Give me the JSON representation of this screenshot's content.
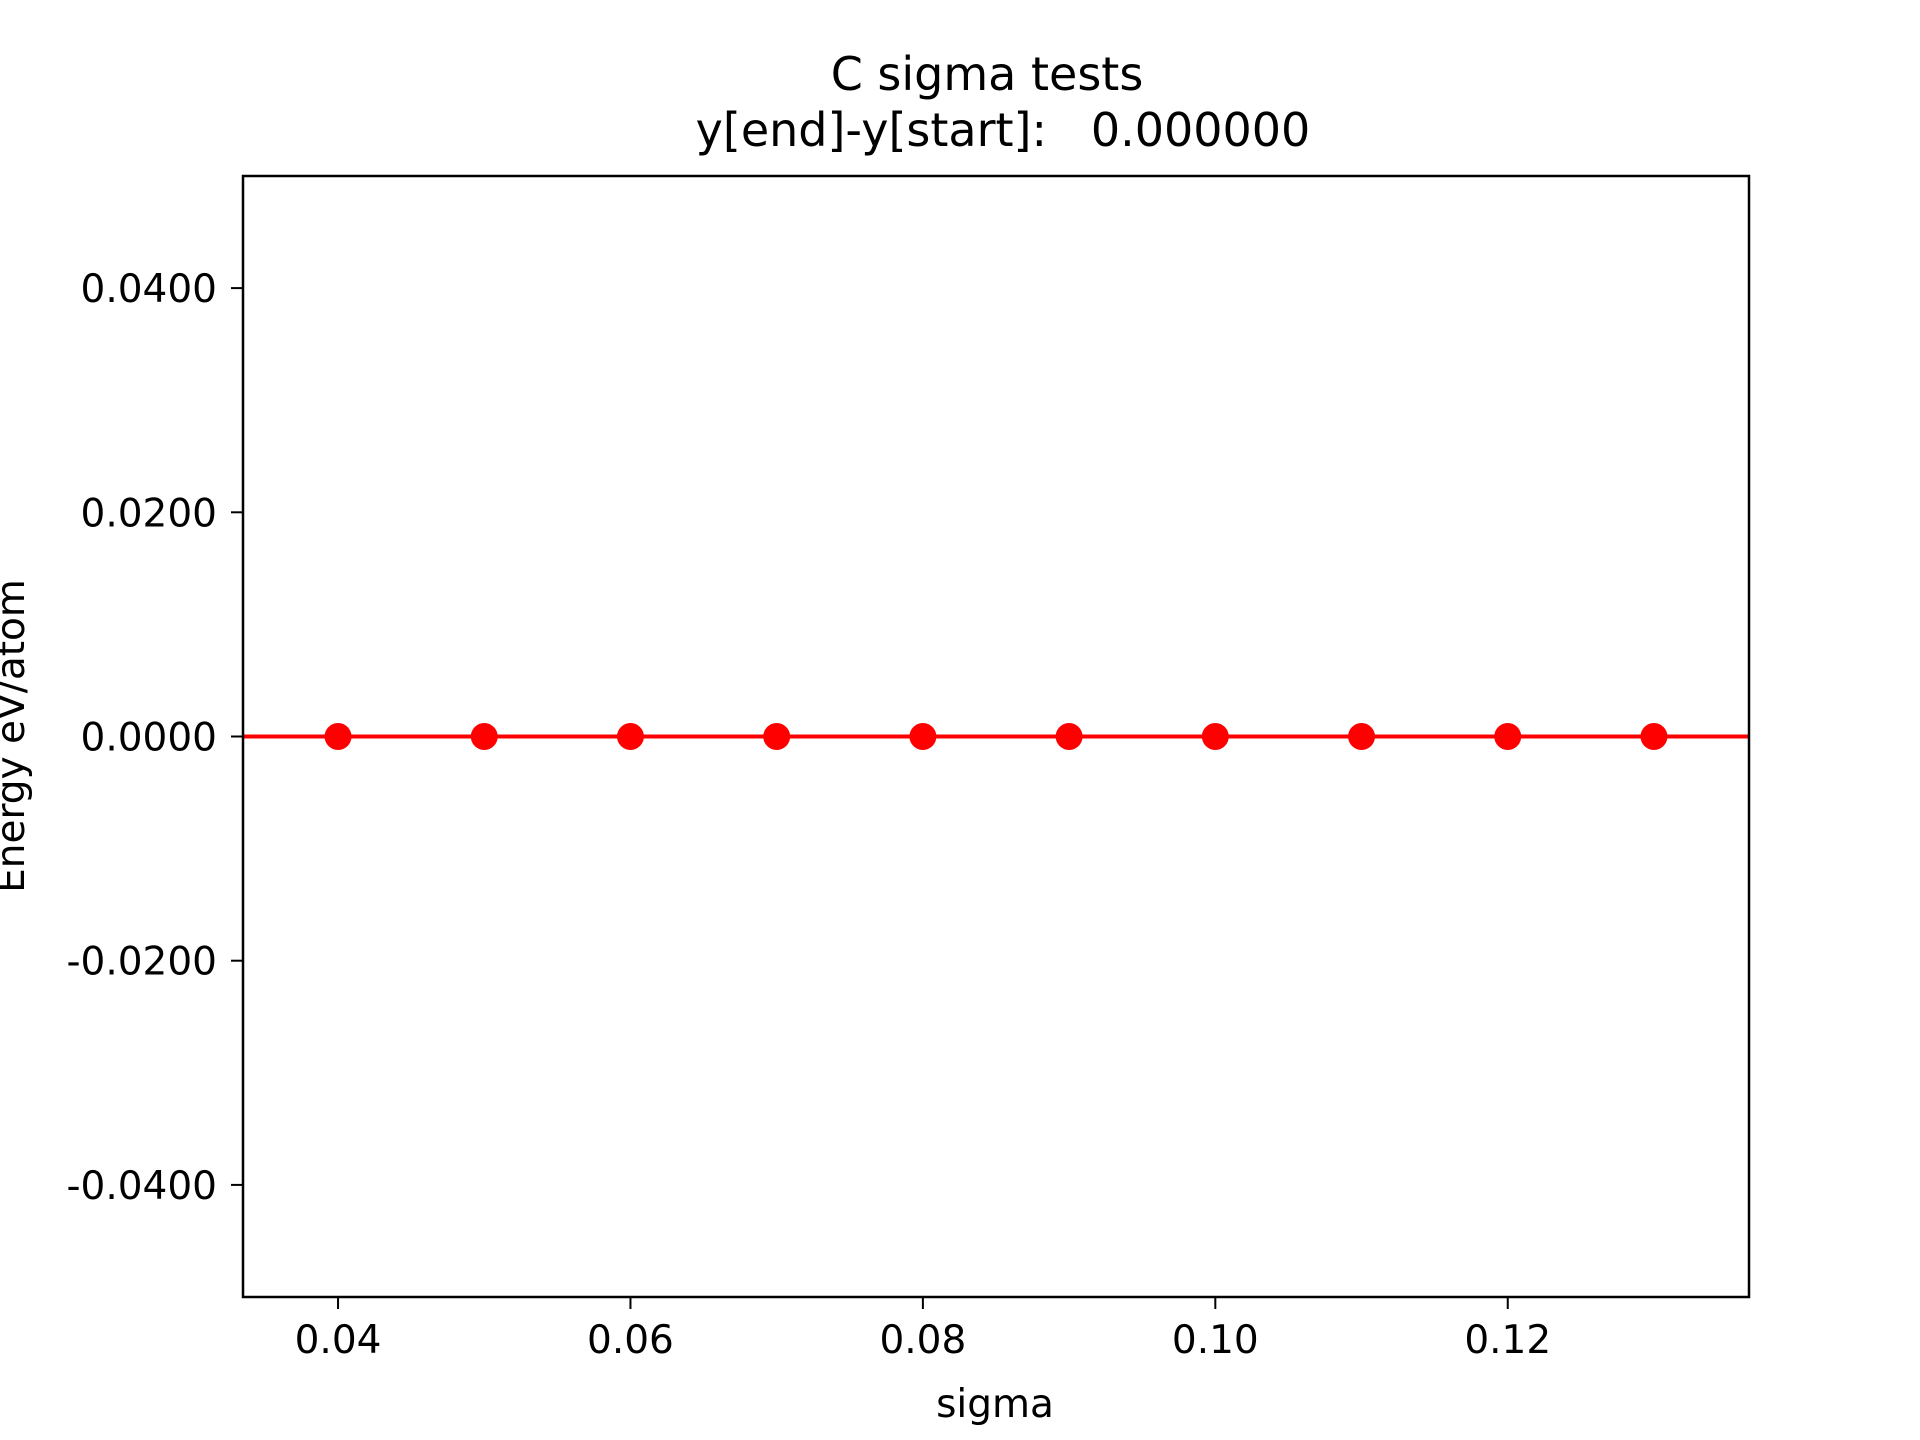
{
  "chart_data": {
    "type": "line",
    "title": "C sigma tests",
    "subtitle": "y[end]-y[start]:   0.000000",
    "xlabel": "sigma",
    "ylabel": "Energy eV/atom",
    "xlim": [
      0.0335,
      0.1365
    ],
    "ylim": [
      -0.05,
      0.05
    ],
    "xticks": [
      0.04,
      0.06,
      0.08,
      0.1,
      0.12
    ],
    "xtick_labels": [
      "0.04",
      "0.06",
      "0.08",
      "0.10",
      "0.12"
    ],
    "yticks": [
      -0.04,
      -0.02,
      0.0,
      0.02,
      0.04
    ],
    "ytick_labels": [
      "-0.0400",
      "-0.0200",
      "0.0000",
      "0.0200",
      "0.0400"
    ],
    "grid": false,
    "series": [
      {
        "x": [
          0.04,
          0.05,
          0.06,
          0.07,
          0.08,
          0.09,
          0.1,
          0.11,
          0.12,
          0.13
        ],
        "y": [
          0,
          0,
          0,
          0,
          0,
          0,
          0,
          0,
          0,
          0
        ],
        "color": "#ff0000",
        "marker": "circle"
      }
    ],
    "reference_line": {
      "y": 0,
      "color": "#ff0000"
    }
  }
}
